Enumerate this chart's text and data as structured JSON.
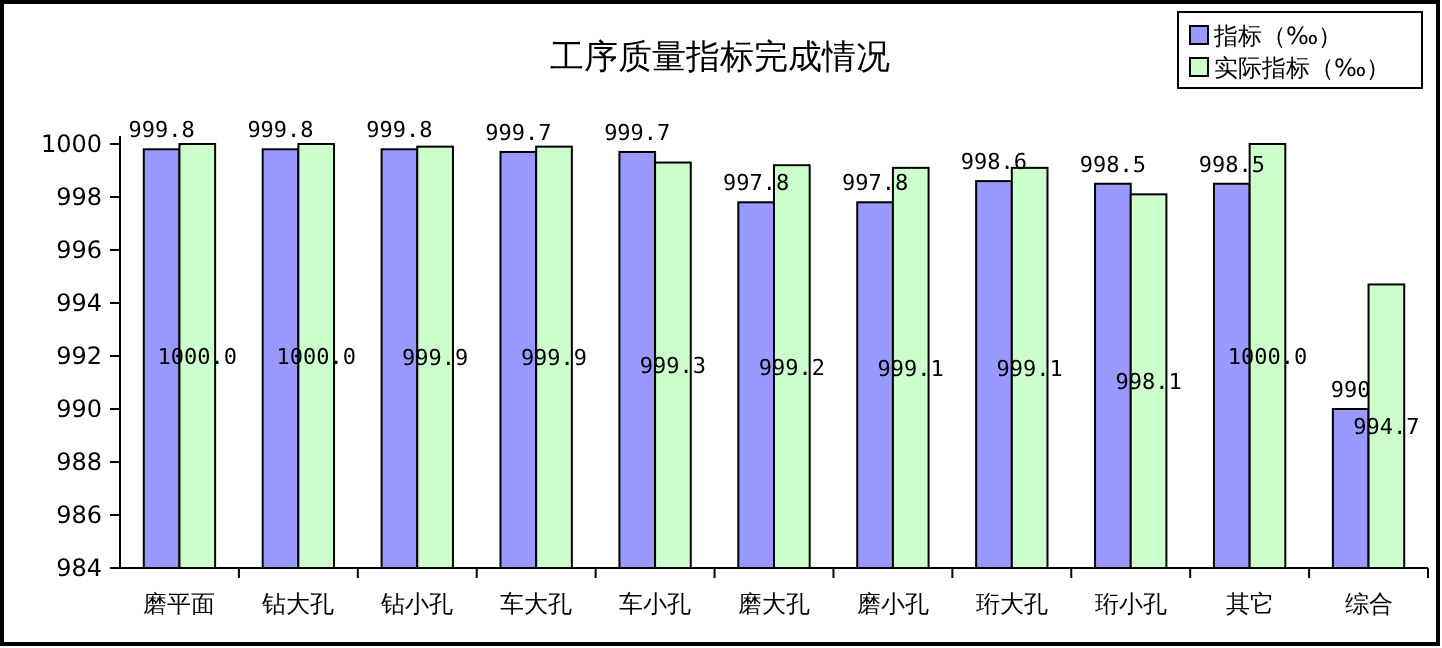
{
  "chart_data": {
    "type": "bar",
    "title": "工序质量指标完成情况",
    "categories": [
      "磨平面",
      "钻大孔",
      "钻小孔",
      "车大孔",
      "车小孔",
      "磨大孔",
      "磨小孔",
      "珩大孔",
      "珩小孔",
      "其它",
      "综合"
    ],
    "series": [
      {
        "name": "指标（‰）",
        "color": "#9999ff",
        "values": [
          999.8,
          999.8,
          999.8,
          999.7,
          999.7,
          997.8,
          997.8,
          998.6,
          998.5,
          998.5,
          990
        ],
        "value_labels": [
          "999.8",
          "999.8",
          "999.8",
          "999.7",
          "999.7",
          "997.8",
          "997.8",
          "998.6",
          "998.5",
          "998.5",
          "990"
        ]
      },
      {
        "name": "实际指标（‰）",
        "color": "#ccffcc",
        "values": [
          1000.0,
          1000.0,
          999.9,
          999.9,
          999.3,
          999.2,
          999.1,
          999.1,
          998.1,
          1000.0,
          994.7
        ],
        "value_labels": [
          "1000.0",
          "1000.0",
          "999.9",
          "999.9",
          "999.3",
          "999.2",
          "999.1",
          "999.1",
          "998.1",
          "1000.0",
          "994.7"
        ]
      }
    ],
    "ylim": [
      984,
      1000
    ],
    "yticks": [
      984,
      986,
      988,
      990,
      992,
      994,
      996,
      998,
      1000
    ],
    "legend": "top right"
  }
}
